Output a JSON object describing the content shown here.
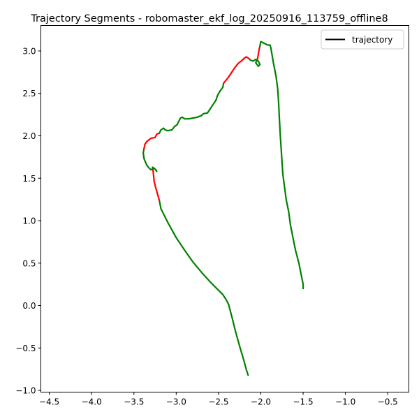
{
  "chart_data": {
    "type": "line",
    "title": "Trajectory Segments - robomaster_ekf_log_20250916_113759_offline8",
    "xlabel": "",
    "ylabel": "",
    "xlim": [
      -4.6,
      -0.25
    ],
    "ylim": [
      -1.02,
      3.3
    ],
    "x_ticks": [
      -4.5,
      -4.0,
      -3.5,
      -3.0,
      -2.5,
      -2.0,
      -1.5,
      -1.0,
      -0.5
    ],
    "x_tick_labels": [
      "−4.5",
      "−4.0",
      "−3.5",
      "−3.0",
      "−2.5",
      "−2.0",
      "−1.5",
      "−1.0",
      "−0.5"
    ],
    "y_ticks": [
      -1.0,
      -0.5,
      0.0,
      0.5,
      1.0,
      1.5,
      2.0,
      2.5,
      3.0
    ],
    "y_tick_labels": [
      "−1.0",
      "−0.5",
      "0.0",
      "0.5",
      "1.0",
      "1.5",
      "2.0",
      "2.5",
      "3.0"
    ],
    "grid": false,
    "legend": {
      "position": "upper-right",
      "entries": [
        {
          "label": "trajectory",
          "color": "#000000"
        }
      ]
    },
    "colors": {
      "normal": "#008000",
      "flagged": "#ff0000"
    },
    "segments": [
      {
        "color": "green",
        "points": [
          [
            -2.15,
            -0.82
          ],
          [
            -2.17,
            -0.76
          ],
          [
            -2.2,
            -0.65
          ],
          [
            -2.25,
            -0.48
          ],
          [
            -2.3,
            -0.3
          ],
          [
            -2.34,
            -0.14
          ],
          [
            -2.37,
            -0.03
          ],
          [
            -2.38,
            0.01
          ],
          [
            -2.41,
            0.07
          ],
          [
            -2.45,
            0.13
          ],
          [
            -2.5,
            0.18
          ],
          [
            -2.6,
            0.28
          ],
          [
            -2.7,
            0.39
          ],
          [
            -2.8,
            0.51
          ],
          [
            -2.9,
            0.65
          ],
          [
            -3.0,
            0.8
          ],
          [
            -3.1,
            0.98
          ],
          [
            -3.18,
            1.14
          ],
          [
            -3.2,
            1.24
          ]
        ]
      },
      {
        "color": "red",
        "points": [
          [
            -3.2,
            1.24
          ],
          [
            -3.22,
            1.31
          ],
          [
            -3.24,
            1.38
          ],
          [
            -3.26,
            1.46
          ],
          [
            -3.27,
            1.56
          ],
          [
            -3.28,
            1.63
          ]
        ]
      },
      {
        "color": "green",
        "points": [
          [
            -3.28,
            1.63
          ],
          [
            -3.24,
            1.6
          ],
          [
            -3.23,
            1.58
          ],
          [
            -3.26,
            1.62
          ],
          [
            -3.3,
            1.6
          ],
          [
            -3.33,
            1.63
          ],
          [
            -3.35,
            1.66
          ],
          [
            -3.38,
            1.73
          ],
          [
            -3.39,
            1.8
          ],
          [
            -3.38,
            1.85
          ]
        ]
      },
      {
        "color": "red",
        "points": [
          [
            -3.38,
            1.85
          ],
          [
            -3.37,
            1.9
          ],
          [
            -3.35,
            1.93
          ],
          [
            -3.3,
            1.97
          ],
          [
            -3.25,
            1.98
          ],
          [
            -3.23,
            2.02
          ],
          [
            -3.2,
            2.03
          ]
        ]
      },
      {
        "color": "green",
        "points": [
          [
            -3.2,
            2.03
          ],
          [
            -3.18,
            2.07
          ],
          [
            -3.15,
            2.09
          ],
          [
            -3.13,
            2.07
          ],
          [
            -3.1,
            2.06
          ],
          [
            -3.05,
            2.07
          ],
          [
            -3.02,
            2.11
          ],
          [
            -2.99,
            2.13
          ],
          [
            -2.97,
            2.17
          ],
          [
            -2.95,
            2.21
          ],
          [
            -2.93,
            2.22
          ],
          [
            -2.9,
            2.2
          ],
          [
            -2.85,
            2.2
          ],
          [
            -2.8,
            2.21
          ],
          [
            -2.75,
            2.22
          ],
          [
            -2.7,
            2.24
          ],
          [
            -2.68,
            2.26
          ],
          [
            -2.63,
            2.27
          ],
          [
            -2.61,
            2.3
          ],
          [
            -2.57,
            2.36
          ],
          [
            -2.53,
            2.42
          ],
          [
            -2.51,
            2.48
          ],
          [
            -2.48,
            2.53
          ],
          [
            -2.45,
            2.57
          ],
          [
            -2.44,
            2.62
          ]
        ]
      },
      {
        "color": "red",
        "points": [
          [
            -2.44,
            2.62
          ],
          [
            -2.39,
            2.68
          ],
          [
            -2.35,
            2.74
          ],
          [
            -2.31,
            2.8
          ],
          [
            -2.27,
            2.85
          ],
          [
            -2.22,
            2.89
          ],
          [
            -2.19,
            2.92
          ],
          [
            -2.17,
            2.93
          ],
          [
            -2.14,
            2.91
          ],
          [
            -2.12,
            2.89
          ]
        ]
      },
      {
        "color": "green",
        "points": [
          [
            -2.12,
            2.89
          ],
          [
            -2.09,
            2.88
          ],
          [
            -2.06,
            2.9
          ],
          [
            -2.03,
            2.88
          ],
          [
            -2.01,
            2.84
          ],
          [
            -2.03,
            2.82
          ],
          [
            -2.06,
            2.86
          ],
          [
            -2.04,
            2.9
          ]
        ]
      },
      {
        "color": "red",
        "points": [
          [
            -2.04,
            2.9
          ],
          [
            -2.03,
            2.96
          ],
          [
            -2.02,
            3.02
          ],
          [
            -2.01,
            3.06
          ]
        ]
      },
      {
        "color": "green",
        "points": [
          [
            -2.01,
            3.06
          ],
          [
            -2.0,
            3.11
          ],
          [
            -1.96,
            3.09
          ],
          [
            -1.92,
            3.07
          ],
          [
            -1.89,
            3.07
          ],
          [
            -1.88,
            3.03
          ],
          [
            -1.85,
            2.85
          ],
          [
            -1.82,
            2.7
          ],
          [
            -1.8,
            2.55
          ],
          [
            -1.79,
            2.4
          ],
          [
            -1.78,
            2.2
          ],
          [
            -1.77,
            2.0
          ],
          [
            -1.76,
            1.85
          ],
          [
            -1.75,
            1.7
          ],
          [
            -1.74,
            1.55
          ],
          [
            -1.72,
            1.4
          ],
          [
            -1.7,
            1.25
          ],
          [
            -1.67,
            1.1
          ],
          [
            -1.65,
            0.95
          ],
          [
            -1.62,
            0.8
          ],
          [
            -1.59,
            0.65
          ],
          [
            -1.55,
            0.5
          ],
          [
            -1.53,
            0.4
          ],
          [
            -1.51,
            0.3
          ],
          [
            -1.5,
            0.25
          ],
          [
            -1.5,
            0.2
          ]
        ]
      }
    ]
  }
}
